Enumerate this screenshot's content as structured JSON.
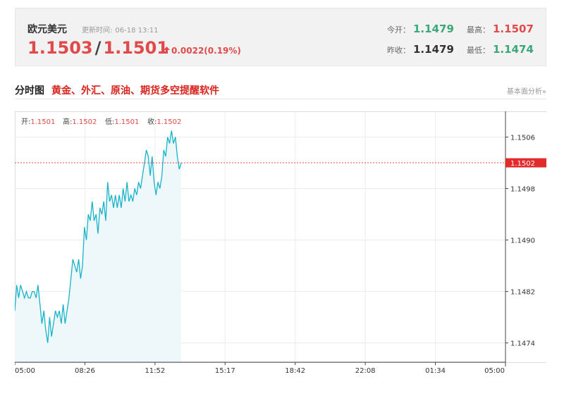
{
  "header": {
    "title": "欧元美元",
    "update_label": "更新时间:",
    "update_time": "06-18 13:11",
    "bid": "1.1503",
    "ask": "1.1501",
    "change": "0.0022(0.19%)",
    "stats": {
      "open_label": "今开：",
      "open": "1.1479",
      "high_label": "最高：",
      "high": "1.1507",
      "prev_label": "昨收：",
      "prev": "1.1479",
      "low_label": "最低：",
      "low": "1.1474"
    }
  },
  "subheader": {
    "label": "分时图",
    "promo": "黄金、外汇、原油、期货多空提醒软件",
    "link": "基本面分析»"
  },
  "colors": {
    "up": "#e04a4a",
    "down": "#3aa87a",
    "line": "#19b3c9",
    "fill": "#eef8fb"
  },
  "chart_data": {
    "type": "area",
    "ohlc": {
      "open_label": "开:",
      "open": "1.1501",
      "high_label": "高:",
      "high": "1.1502",
      "low_label": "低:",
      "low": "1.1501",
      "close_label": "收:",
      "close": "1.1502"
    },
    "x_ticks": [
      "05:00",
      "08:26",
      "11:52",
      "15:17",
      "18:42",
      "22:08",
      "01:34",
      "05:00"
    ],
    "y_ticks": [
      "1.1506",
      "1.1498",
      "1.1490",
      "1.1482",
      "1.1474"
    ],
    "ylim": [
      1.1471,
      1.151
    ],
    "current_price": "1.1502",
    "current_value": 1.1502,
    "series": [
      {
        "values": [
          1.1479,
          1.1483,
          1.1481,
          1.1483,
          1.1482,
          1.1481,
          1.1482,
          1.1481,
          1.1481,
          1.1482,
          1.1482,
          1.1481,
          1.1483,
          1.148,
          1.1477,
          1.1479,
          1.1476,
          1.1474,
          1.1478,
          1.1475,
          1.1477,
          1.1479,
          1.1478,
          1.1479,
          1.1477,
          1.148,
          1.1477,
          1.1479,
          1.1481,
          1.1484,
          1.1487,
          1.1486,
          1.1485,
          1.1487,
          1.1484,
          1.1486,
          1.1492,
          1.149,
          1.1494,
          1.1493,
          1.1496,
          1.1493,
          1.1494,
          1.1491,
          1.1495,
          1.1494,
          1.1496,
          1.1493,
          1.1499,
          1.1496,
          1.1497,
          1.1495,
          1.1497,
          1.1495,
          1.1497,
          1.1495,
          1.1498,
          1.1496,
          1.1499,
          1.1496,
          1.1497,
          1.1496,
          1.1498,
          1.1497,
          1.1499,
          1.1498,
          1.15,
          1.1502,
          1.1504,
          1.1503,
          1.15,
          1.1503,
          1.1499,
          1.1497,
          1.1499,
          1.1498,
          1.15,
          1.1504,
          1.1503,
          1.1506,
          1.1505,
          1.1507,
          1.1505,
          1.1506,
          1.1503,
          1.1501,
          1.1502
        ]
      }
    ],
    "xlabel": "",
    "ylabel": "",
    "grid": true
  }
}
